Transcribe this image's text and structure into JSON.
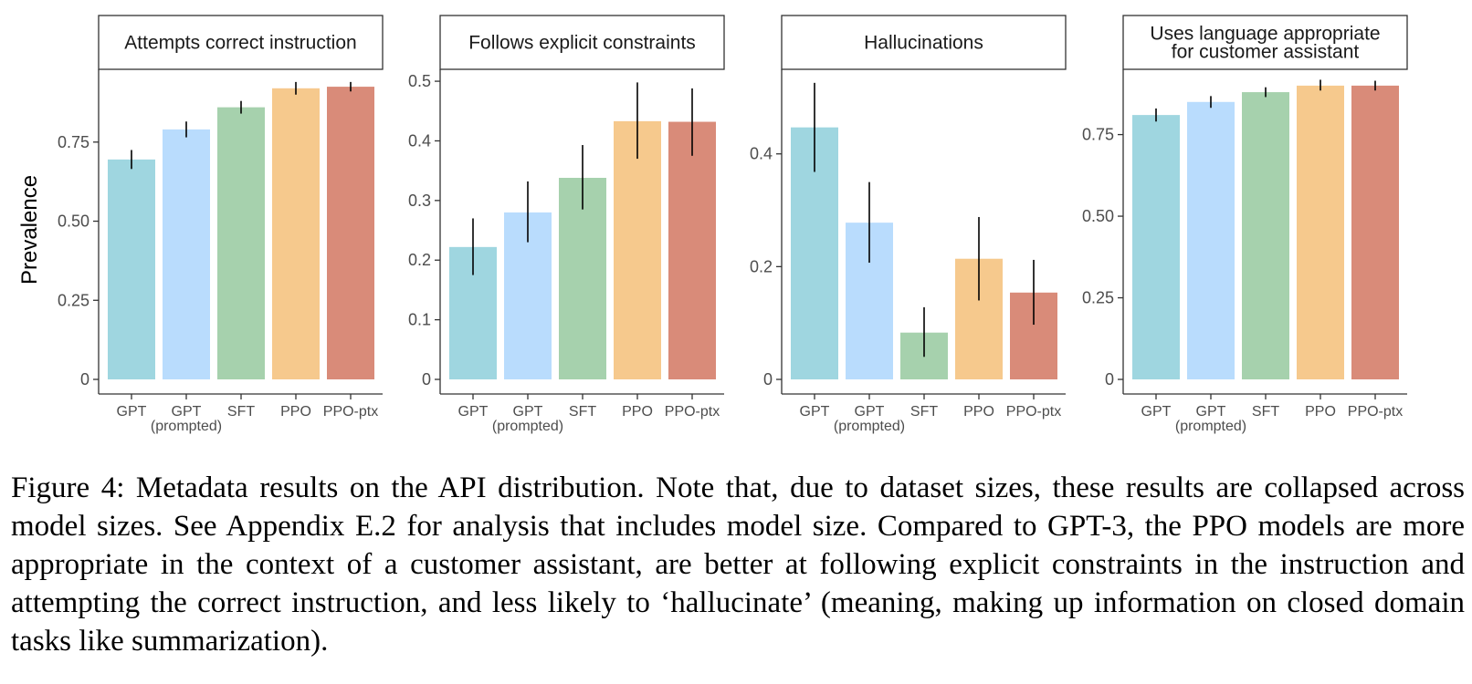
{
  "figure": {
    "ylabel": "Prevalence",
    "caption": "Figure 4: Metadata results on the API distribution. Note that, due to dataset sizes, these results are collapsed across model sizes. See Appendix E.2 for analysis that includes model size. Compared to GPT-3, the PPO models are more appropriate in the context of a customer assistant, are better at following explicit constraints in the instruction and attempting the correct instruction, and less likely to ‘hallucinate’ (meaning, making up information on closed domain tasks like summarization)."
  },
  "chart_data": [
    {
      "type": "bar",
      "title": [
        "Attempts correct instruction"
      ],
      "categories": [
        [
          "GPT"
        ],
        [
          "GPT",
          "(prompted)"
        ],
        [
          "SFT"
        ],
        [
          "PPO"
        ],
        [
          "PPO-ptx"
        ]
      ],
      "colors": [
        "#9fd6e0",
        "#b9dcfd",
        "#a6d1ad",
        "#f6c98d",
        "#d98b79"
      ],
      "values": [
        0.695,
        0.79,
        0.86,
        0.92,
        0.925
      ],
      "error_low": [
        0.665,
        0.765,
        0.84,
        0.9,
        0.91
      ],
      "error_high": [
        0.725,
        0.815,
        0.88,
        0.94,
        0.94
      ],
      "ylim": [
        0,
        0.98
      ],
      "yticks": [
        0,
        0.25,
        0.5,
        0.75
      ],
      "ytick_labels": [
        "0",
        "0.25",
        "0.50",
        "0.75"
      ]
    },
    {
      "type": "bar",
      "title": [
        "Follows explicit constraints"
      ],
      "categories": [
        [
          "GPT"
        ],
        [
          "GPT",
          "(prompted)"
        ],
        [
          "SFT"
        ],
        [
          "PPO"
        ],
        [
          "PPO-ptx"
        ]
      ],
      "colors": [
        "#9fd6e0",
        "#b9dcfd",
        "#a6d1ad",
        "#f6c98d",
        "#d98b79"
      ],
      "values": [
        0.222,
        0.28,
        0.338,
        0.433,
        0.432
      ],
      "error_low": [
        0.175,
        0.23,
        0.285,
        0.37,
        0.375
      ],
      "error_high": [
        0.27,
        0.332,
        0.393,
        0.498,
        0.488
      ],
      "ylim": [
        0,
        0.52
      ],
      "yticks": [
        0,
        0.1,
        0.2,
        0.3,
        0.4,
        0.5
      ],
      "ytick_labels": [
        "0",
        "0.1",
        "0.2",
        "0.3",
        "0.4",
        "0.5"
      ]
    },
    {
      "type": "bar",
      "title": [
        "Hallucinations"
      ],
      "categories": [
        [
          "GPT"
        ],
        [
          "GPT",
          "(prompted)"
        ],
        [
          "SFT"
        ],
        [
          "PPO"
        ],
        [
          "PPO-ptx"
        ]
      ],
      "colors": [
        "#9fd6e0",
        "#b9dcfd",
        "#a6d1ad",
        "#f6c98d",
        "#d98b79"
      ],
      "values": [
        0.447,
        0.278,
        0.083,
        0.214,
        0.154
      ],
      "error_low": [
        0.368,
        0.207,
        0.04,
        0.14,
        0.097
      ],
      "error_high": [
        0.526,
        0.35,
        0.128,
        0.288,
        0.212
      ],
      "ylim": [
        0,
        0.55
      ],
      "yticks": [
        0,
        0.2,
        0.4
      ],
      "ytick_labels": [
        "0",
        "0.2",
        "0.4"
      ]
    },
    {
      "type": "bar",
      "title": [
        "Uses language appropriate",
        "for customer assistant"
      ],
      "categories": [
        [
          "GPT"
        ],
        [
          "GPT",
          "(prompted)"
        ],
        [
          "SFT"
        ],
        [
          "PPO"
        ],
        [
          "PPO-ptx"
        ]
      ],
      "colors": [
        "#9fd6e0",
        "#b9dcfd",
        "#a6d1ad",
        "#f6c98d",
        "#d98b79"
      ],
      "values": [
        0.81,
        0.85,
        0.88,
        0.9,
        0.9
      ],
      "error_low": [
        0.79,
        0.832,
        0.865,
        0.885,
        0.885
      ],
      "error_high": [
        0.83,
        0.868,
        0.895,
        0.918,
        0.915
      ],
      "ylim": [
        0,
        0.95
      ],
      "yticks": [
        0,
        0.25,
        0.5,
        0.75
      ],
      "ytick_labels": [
        "0",
        "0.25",
        "0.50",
        "0.75"
      ]
    }
  ]
}
